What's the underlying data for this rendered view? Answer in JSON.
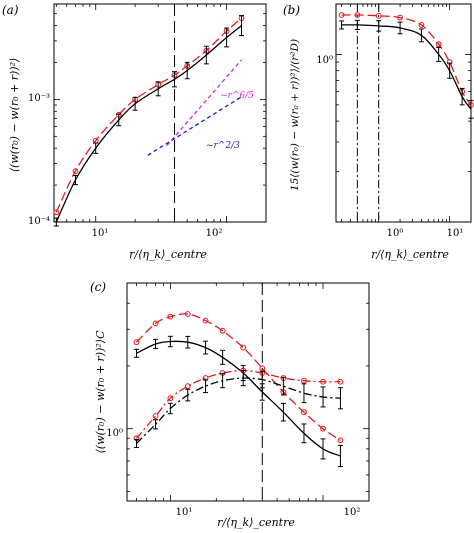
{
  "panels": {
    "a": {
      "label": "(a)",
      "ylabel": "⟨(w(r₀) − w(r₀ + r))²⟩",
      "xlabel": "r/⟨η_k⟩_centre",
      "xticks": [
        "10¹",
        "10²"
      ],
      "yticks": [
        "10⁻⁴",
        "10⁻³"
      ],
      "annotations": {
        "slope_high": "~r^6/5",
        "slope_low": "~r^2/3"
      }
    },
    "b": {
      "label": "(b)",
      "ylabel": "15⟨(w(r₀) − w(r₀ + r))²⟩/(r²D)",
      "xlabel": "r/⟨η_k⟩_centre",
      "xticks": [
        "10⁰",
        "10¹"
      ],
      "yticks": [
        "10⁰"
      ]
    },
    "c": {
      "label": "(c)",
      "ylabel": "⟨(w(r₀) − w(r₀ + r))²⟩C",
      "xlabel": "r/⟨η_k⟩_centre",
      "xticks": [
        "10¹",
        "10²"
      ],
      "yticks": [
        "10⁰"
      ]
    }
  },
  "colors": {
    "red": "#e41a1c",
    "black": "#000000",
    "magenta": "#e020e0",
    "blue": "#2020c0"
  },
  "chart_data": [
    {
      "type": "line",
      "panel": "a",
      "xscale": "log",
      "yscale": "log",
      "xlim": [
        4.8,
        200
      ],
      "ylim": [
        0.0001,
        0.006
      ],
      "title": "",
      "xlabel": "r/⟨η_k⟩_centre",
      "ylabel": "⟨(w(r₀) − w(r₀ + r))²⟩",
      "vline": 40,
      "series": [
        {
          "style": "red-dashed",
          "x": [
            5,
            7,
            10,
            15,
            20,
            30,
            40,
            50,
            70,
            100,
            130
          ],
          "y": [
            0.00012,
            0.00026,
            0.00046,
            0.00075,
            0.001,
            0.00132,
            0.00158,
            0.00188,
            0.0025,
            0.0036,
            0.0046
          ]
        },
        {
          "style": "black-solid",
          "x": [
            5,
            7,
            10,
            15,
            20,
            30,
            40,
            50,
            70,
            100,
            130
          ],
          "y": [
            0.0001,
            0.00022,
            0.0004,
            0.00068,
            0.00092,
            0.00122,
            0.00146,
            0.00172,
            0.0023,
            0.0032,
            0.004
          ]
        },
        {
          "style": "magenta-dashed",
          "x": [
            35,
            130
          ],
          "y": [
            0.00042,
            0.0021
          ]
        },
        {
          "style": "blue-dashed",
          "x": [
            25,
            130
          ],
          "y": [
            0.00035,
            0.00105
          ]
        }
      ]
    },
    {
      "type": "line",
      "panel": "b",
      "xscale": "log",
      "yscale": "log",
      "xlim": [
        0.25,
        20
      ],
      "ylim": [
        0.1,
        2
      ],
      "title": "",
      "xlabel": "r/⟨η_k⟩_centre",
      "ylabel": "15⟨(w(r₀) − w(r₀ + r))²⟩/(r²D)",
      "vlines": [
        0.5,
        1.0
      ],
      "series": [
        {
          "style": "red-dashed",
          "x": [
            0.3,
            0.5,
            1,
            2,
            4,
            7,
            10,
            15,
            20
          ],
          "y": [
            1.72,
            1.72,
            1.7,
            1.66,
            1.5,
            1.15,
            0.9,
            0.6,
            0.5
          ]
        },
        {
          "style": "black-solid",
          "x": [
            0.3,
            0.5,
            1,
            2,
            4,
            7,
            10,
            15,
            20
          ],
          "y": [
            1.5,
            1.5,
            1.48,
            1.44,
            1.3,
            1.0,
            0.8,
            0.56,
            0.47
          ]
        }
      ]
    },
    {
      "type": "line",
      "panel": "c",
      "xscale": "log",
      "yscale": "log",
      "xlim": [
        5.2,
        200
      ],
      "ylim": [
        0.45,
        5
      ],
      "title": "",
      "xlabel": "r/⟨η_k⟩_centre",
      "ylabel": "⟨(w(r₀) − w(r₀ + r))²⟩C",
      "vline": 40,
      "series": [
        {
          "style": "red-dashed",
          "x": [
            6,
            8,
            10,
            13,
            17,
            22,
            30,
            40,
            55,
            75,
            100,
            130
          ],
          "y": [
            2.6,
            3.2,
            3.45,
            3.55,
            3.3,
            2.95,
            2.45,
            1.95,
            1.5,
            1.2,
            1.0,
            0.88
          ]
        },
        {
          "style": "black-solid",
          "x": [
            6,
            8,
            10,
            13,
            17,
            22,
            30,
            40,
            55,
            75,
            100,
            130
          ],
          "y": [
            2.3,
            2.55,
            2.62,
            2.6,
            2.45,
            2.2,
            1.85,
            1.5,
            1.2,
            0.95,
            0.8,
            0.74
          ]
        },
        {
          "style": "red-dashdot",
          "x": [
            6,
            8,
            10,
            13,
            17,
            22,
            30,
            40,
            55,
            75,
            100,
            130
          ],
          "y": [
            0.9,
            1.15,
            1.4,
            1.6,
            1.75,
            1.85,
            1.9,
            1.85,
            1.75,
            1.7,
            1.68,
            1.68
          ]
        },
        {
          "style": "black-dashdot",
          "x": [
            6,
            8,
            10,
            13,
            17,
            22,
            30,
            40,
            55,
            75,
            100,
            130
          ],
          "y": [
            0.85,
            1.05,
            1.25,
            1.45,
            1.6,
            1.7,
            1.75,
            1.72,
            1.6,
            1.48,
            1.42,
            1.4
          ]
        }
      ]
    }
  ]
}
